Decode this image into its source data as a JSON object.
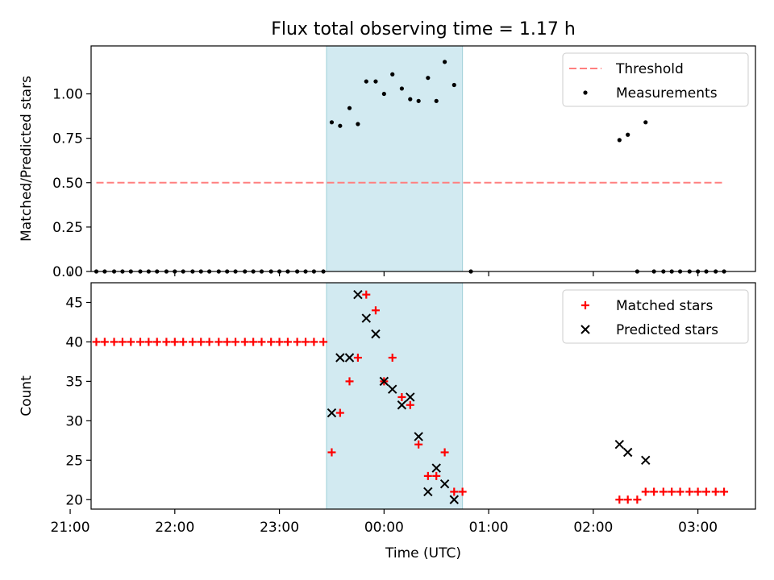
{
  "title": "Flux total observing time = 1.17 h",
  "colors": {
    "threshold": "#ff7f7f",
    "measurement": "#000000",
    "matched": "#ff0000",
    "predicted": "#000000",
    "span": "#add8e6"
  },
  "chart_data": [
    {
      "type": "scatter",
      "ylabel": "Matched/Predicted stars",
      "xlabel": "",
      "xlim": [
        -2.8,
        3.55
      ],
      "ylim": [
        0,
        1.27
      ],
      "yticks": [
        0.0,
        0.25,
        0.5,
        0.75,
        1.0
      ],
      "ytick_labels": [
        "0.00",
        "0.25",
        "0.50",
        "0.75",
        "1.00"
      ],
      "highlight_span": {
        "x_start": -0.55,
        "x_end": 0.75
      },
      "threshold": {
        "name": "Threshold",
        "y": 0.5,
        "x_start": -2.75,
        "x_end": 3.25
      },
      "legend": {
        "position": "top-right",
        "entries": [
          "Threshold",
          "Measurements"
        ]
      },
      "series": [
        {
          "name": "Measurements",
          "points": [
            [
              -2.75,
              0
            ],
            [
              -2.67,
              0
            ],
            [
              -2.58,
              0
            ],
            [
              -2.5,
              0
            ],
            [
              -2.42,
              0
            ],
            [
              -2.33,
              0
            ],
            [
              -2.25,
              0
            ],
            [
              -2.17,
              0
            ],
            [
              -2.08,
              0
            ],
            [
              -2.0,
              0
            ],
            [
              -1.92,
              0
            ],
            [
              -1.83,
              0
            ],
            [
              -1.75,
              0
            ],
            [
              -1.67,
              0
            ],
            [
              -1.58,
              0
            ],
            [
              -1.5,
              0
            ],
            [
              -1.42,
              0
            ],
            [
              -1.33,
              0
            ],
            [
              -1.25,
              0
            ],
            [
              -1.17,
              0
            ],
            [
              -1.08,
              0
            ],
            [
              -1.0,
              0
            ],
            [
              -0.92,
              0
            ],
            [
              -0.83,
              0
            ],
            [
              -0.75,
              0
            ],
            [
              -0.67,
              0
            ],
            [
              -0.58,
              0
            ],
            [
              -0.5,
              0.84
            ],
            [
              -0.42,
              0.82
            ],
            [
              -0.33,
              0.92
            ],
            [
              -0.25,
              0.83
            ],
            [
              -0.17,
              1.07
            ],
            [
              -0.08,
              1.07
            ],
            [
              0.0,
              1.0
            ],
            [
              0.08,
              1.11
            ],
            [
              0.17,
              1.03
            ],
            [
              0.25,
              0.97
            ],
            [
              0.33,
              0.96
            ],
            [
              0.42,
              1.09
            ],
            [
              0.5,
              0.96
            ],
            [
              0.58,
              1.18
            ],
            [
              0.67,
              1.05
            ],
            [
              0.83,
              0
            ],
            [
              2.25,
              0.74
            ],
            [
              2.33,
              0.77
            ],
            [
              2.42,
              0
            ],
            [
              2.5,
              0.84
            ],
            [
              2.58,
              0
            ],
            [
              2.67,
              0
            ],
            [
              2.75,
              0
            ],
            [
              2.83,
              0
            ],
            [
              2.92,
              0
            ],
            [
              3.0,
              0
            ],
            [
              3.08,
              0
            ],
            [
              3.17,
              0
            ],
            [
              3.25,
              0
            ]
          ]
        }
      ]
    },
    {
      "type": "scatter",
      "ylabel": "Count",
      "xlabel": "Time (UTC)",
      "xlim": [
        -2.8,
        3.55
      ],
      "ylim": [
        18.8,
        47.5
      ],
      "yticks": [
        20,
        25,
        30,
        35,
        40,
        45
      ],
      "ytick_labels": [
        "20",
        "25",
        "30",
        "35",
        "40",
        "45"
      ],
      "xticks": [
        -2.0,
        -1.0,
        0.0,
        1.0,
        2.0,
        3.0
      ],
      "xtick_labels": [
        "21:00",
        "22:00",
        "23:00",
        "00:00",
        "01:00",
        "02:00",
        "03:00"
      ],
      "xtick_values": [
        -3.0,
        -2.0,
        -1.0,
        0.0,
        1.0,
        2.0,
        3.0
      ],
      "highlight_span": {
        "x_start": -0.55,
        "x_end": 0.75
      },
      "legend": {
        "position": "top-right",
        "entries": [
          "Matched stars",
          "Predicted stars"
        ]
      },
      "series": [
        {
          "name": "Matched stars",
          "marker": "plus",
          "points": [
            [
              -2.75,
              40
            ],
            [
              -2.67,
              40
            ],
            [
              -2.58,
              40
            ],
            [
              -2.5,
              40
            ],
            [
              -2.42,
              40
            ],
            [
              -2.33,
              40
            ],
            [
              -2.25,
              40
            ],
            [
              -2.17,
              40
            ],
            [
              -2.08,
              40
            ],
            [
              -2.0,
              40
            ],
            [
              -1.92,
              40
            ],
            [
              -1.83,
              40
            ],
            [
              -1.75,
              40
            ],
            [
              -1.67,
              40
            ],
            [
              -1.58,
              40
            ],
            [
              -1.5,
              40
            ],
            [
              -1.42,
              40
            ],
            [
              -1.33,
              40
            ],
            [
              -1.25,
              40
            ],
            [
              -1.17,
              40
            ],
            [
              -1.08,
              40
            ],
            [
              -1.0,
              40
            ],
            [
              -0.92,
              40
            ],
            [
              -0.83,
              40
            ],
            [
              -0.75,
              40
            ],
            [
              -0.67,
              40
            ],
            [
              -0.58,
              40
            ],
            [
              -0.5,
              26
            ],
            [
              -0.42,
              31
            ],
            [
              -0.33,
              35
            ],
            [
              -0.25,
              38
            ],
            [
              -0.17,
              46
            ],
            [
              -0.08,
              44
            ],
            [
              0.0,
              35
            ],
            [
              0.08,
              38
            ],
            [
              0.17,
              33
            ],
            [
              0.25,
              32
            ],
            [
              0.33,
              27
            ],
            [
              0.42,
              23
            ],
            [
              0.5,
              23
            ],
            [
              0.58,
              26
            ],
            [
              0.67,
              21
            ],
            [
              0.75,
              21
            ],
            [
              2.25,
              20
            ],
            [
              2.33,
              20
            ],
            [
              2.42,
              20
            ],
            [
              2.5,
              21
            ],
            [
              2.58,
              21
            ],
            [
              2.67,
              21
            ],
            [
              2.75,
              21
            ],
            [
              2.83,
              21
            ],
            [
              2.92,
              21
            ],
            [
              3.0,
              21
            ],
            [
              3.08,
              21
            ],
            [
              3.17,
              21
            ],
            [
              3.25,
              21
            ]
          ]
        },
        {
          "name": "Predicted stars",
          "marker": "x",
          "points": [
            [
              -0.5,
              31
            ],
            [
              -0.42,
              38
            ],
            [
              -0.33,
              38
            ],
            [
              -0.25,
              46
            ],
            [
              -0.17,
              43
            ],
            [
              -0.08,
              41
            ],
            [
              0.0,
              35
            ],
            [
              0.08,
              34
            ],
            [
              0.17,
              32
            ],
            [
              0.25,
              33
            ],
            [
              0.33,
              28
            ],
            [
              0.42,
              21
            ],
            [
              0.5,
              24
            ],
            [
              0.58,
              22
            ],
            [
              0.67,
              20
            ],
            [
              2.25,
              27
            ],
            [
              2.33,
              26
            ],
            [
              2.5,
              25
            ]
          ]
        }
      ]
    }
  ]
}
